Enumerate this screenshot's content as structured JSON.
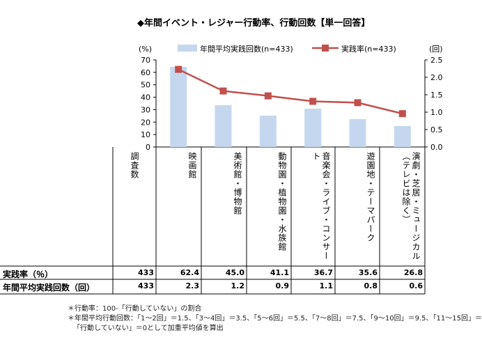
{
  "title": "◆年間イベント・レジャー行動率、行動回数【単一回答】",
  "chart_data": {
    "type": "bar",
    "categories": [
      "映画館",
      "美術館・博物館",
      "動物園・植物園・水族館",
      "音楽会・ライブ・コンサート",
      "遊園地・テーマパーク",
      "演劇・芝居・ミュージカル（テレビは除く）"
    ],
    "series": [
      {
        "name": "年間平均実践回数(n=433)",
        "type": "bar",
        "axis": "right",
        "values": [
          2.3,
          1.2,
          0.9,
          1.1,
          0.8,
          0.6
        ],
        "color": "#c5d7ee"
      },
      {
        "name": "実践率(n=433)",
        "type": "line",
        "axis": "left",
        "values": [
          62.4,
          45.0,
          41.1,
          36.7,
          35.6,
          26.8
        ],
        "color": "#c0504d"
      }
    ],
    "ylabel_left": "(%)",
    "ylabel_right": "(回)",
    "ylim_left": [
      0,
      70
    ],
    "ylim_right": [
      0,
      2.5
    ],
    "yticks_left": [
      "0",
      "10",
      "20",
      "30",
      "40",
      "50",
      "60",
      "70"
    ],
    "yticks_right": [
      "0.0",
      "0.5",
      "1.0",
      "1.5",
      "2.0",
      "2.5"
    ],
    "legend_position": "top",
    "grid": false
  },
  "table": {
    "header_label": "調査数",
    "columns": [
      "映画館",
      "美術館・博物館",
      "動物園・植物園・水族館",
      "音楽会・ライブ・コンサート",
      "遊園地・テーマパーク",
      "演劇・芝居・ミュージカル（テレビは除く）"
    ],
    "rows": [
      {
        "label": "実践率（％）",
        "n": "433",
        "values": [
          "62.4",
          "45.0",
          "41.1",
          "36.7",
          "35.6",
          "26.8"
        ]
      },
      {
        "label": "年間平均実践回数（回）",
        "n": "433",
        "values": [
          "2.3",
          "1.2",
          "0.9",
          "1.1",
          "0.8",
          "0.6"
        ]
      }
    ]
  },
  "notes": [
    "＊行動率：100-「行動していない」の割合",
    "＊年間平均行動回数：「1～2回」＝1.5、「3～4回」＝3.5、「5～6回」＝5.5、「7～8回」＝7.5、「9～10回」＝9.5、「11～15回」＝",
    "「行動していない」＝0として加重平均値を算出"
  ]
}
